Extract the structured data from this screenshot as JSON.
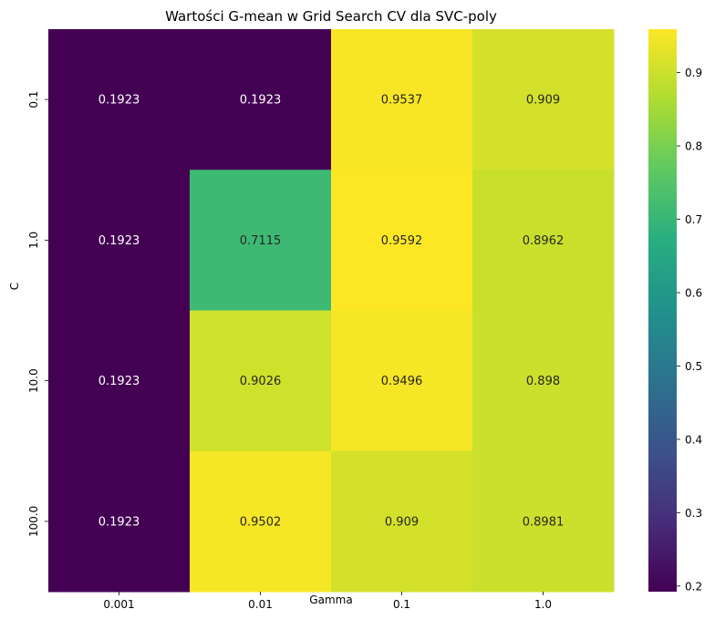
{
  "chart_data": {
    "type": "heatmap",
    "title": "Wartości G-mean w Grid Search CV dla SVC-poly",
    "xlabel": "Gamma",
    "ylabel": "C",
    "x": [
      "0.001",
      "0.01",
      "0.1",
      "1.0"
    ],
    "y": [
      "0.1",
      "1.0",
      "10.0",
      "100.0"
    ],
    "values": [
      [
        0.1923,
        0.1923,
        0.9537,
        0.909
      ],
      [
        0.1923,
        0.7115,
        0.9592,
        0.8962
      ],
      [
        0.1923,
        0.9026,
        0.9496,
        0.898
      ],
      [
        0.1923,
        0.9502,
        0.909,
        0.8981
      ]
    ],
    "colormap": "viridis",
    "colorbar": {
      "range": [
        0.1923,
        0.9592
      ],
      "ticks": [
        "0.2",
        "0.3",
        "0.4",
        "0.5",
        "0.6",
        "0.7",
        "0.8",
        "0.9"
      ]
    },
    "grid": false
  }
}
